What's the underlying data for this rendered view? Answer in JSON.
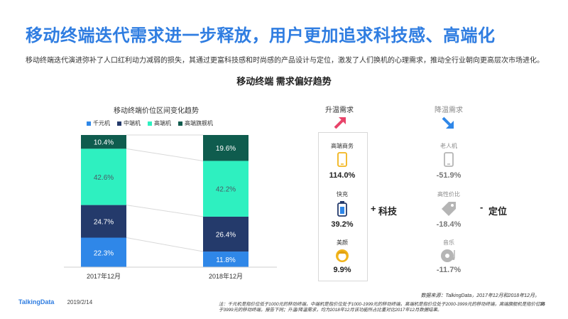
{
  "header": {
    "title": "移动终端迭代需求进一步释放，用户更加追求科技感、高端化",
    "subtitle": "移动终端迭代演进弥补了人口红利动力减弱的损失，其通过更富科技感和时尚感的产品设计与定位，激发了人们换机的心理需求，推动全行业朝向更高层次市场进化。"
  },
  "section_title": "移动终端  需求偏好趋势",
  "chart_data": {
    "type": "bar",
    "stacked": true,
    "title": "移动终端价位区间变化趋势",
    "categories": [
      "2017年12月",
      "2018年12月"
    ],
    "series": [
      {
        "name": "千元机",
        "color": "#2f87e8",
        "values": [
          22.3,
          11.8
        ],
        "labels": [
          "22.3%",
          "11.8%"
        ]
      },
      {
        "name": "中端机",
        "color": "#243a6b",
        "values": [
          24.7,
          26.4
        ],
        "labels": [
          "24.7%",
          "26.4%"
        ]
      },
      {
        "name": "高端机",
        "color": "#2ef0c0",
        "values": [
          42.6,
          42.2
        ],
        "labels": [
          "42.6%",
          "42.2%"
        ]
      },
      {
        "name": "高端旗舰机",
        "color": "#0f5c4e",
        "values": [
          10.4,
          19.6
        ],
        "labels": [
          "10.4%",
          "19.6%"
        ]
      }
    ],
    "ylim": [
      0,
      100
    ],
    "legend_position": "top"
  },
  "rising": {
    "title": "升温需求",
    "arrow_color": "#e8446a",
    "items": [
      {
        "label": "高端商务",
        "value": "114.0%",
        "icon": "phone-icon"
      },
      {
        "label": "快充",
        "value": "39.2%",
        "icon": "battery-icon"
      },
      {
        "label": "美颜",
        "value": "9.9%",
        "icon": "beauty-face-icon"
      }
    ]
  },
  "falling": {
    "title": "降温需求",
    "arrow_color": "#2f87e8",
    "items": [
      {
        "label": "老人机",
        "value": "-51.9%",
        "icon": "phone-icon"
      },
      {
        "label": "高性价比",
        "value": "-18.4%",
        "icon": "price-tag-icon"
      },
      {
        "label": "音乐",
        "value": "-11.7%",
        "icon": "music-disc-icon"
      }
    ]
  },
  "mid_labels": {
    "tech": "科技",
    "tech_sign": "+",
    "position": "定位",
    "position_sign": "-"
  },
  "footer": {
    "brand": "TalkingData",
    "date": "2019/2/14",
    "source": "数据来源：TalkingData，2017年12月和2018年12月。",
    "note": "注：千元机是指价位低于1000元的移动终端，中端机是指价位处于1000-1999元的移动终端，高端机是指价位处于2000-3999元的移动终端，高端旗舰机是指价位高于3999元的移动终端，报告下同；升温/降温需求，均为2018年12月该功能所占比重对比2017年12月数据结果。",
    "page": "18"
  }
}
